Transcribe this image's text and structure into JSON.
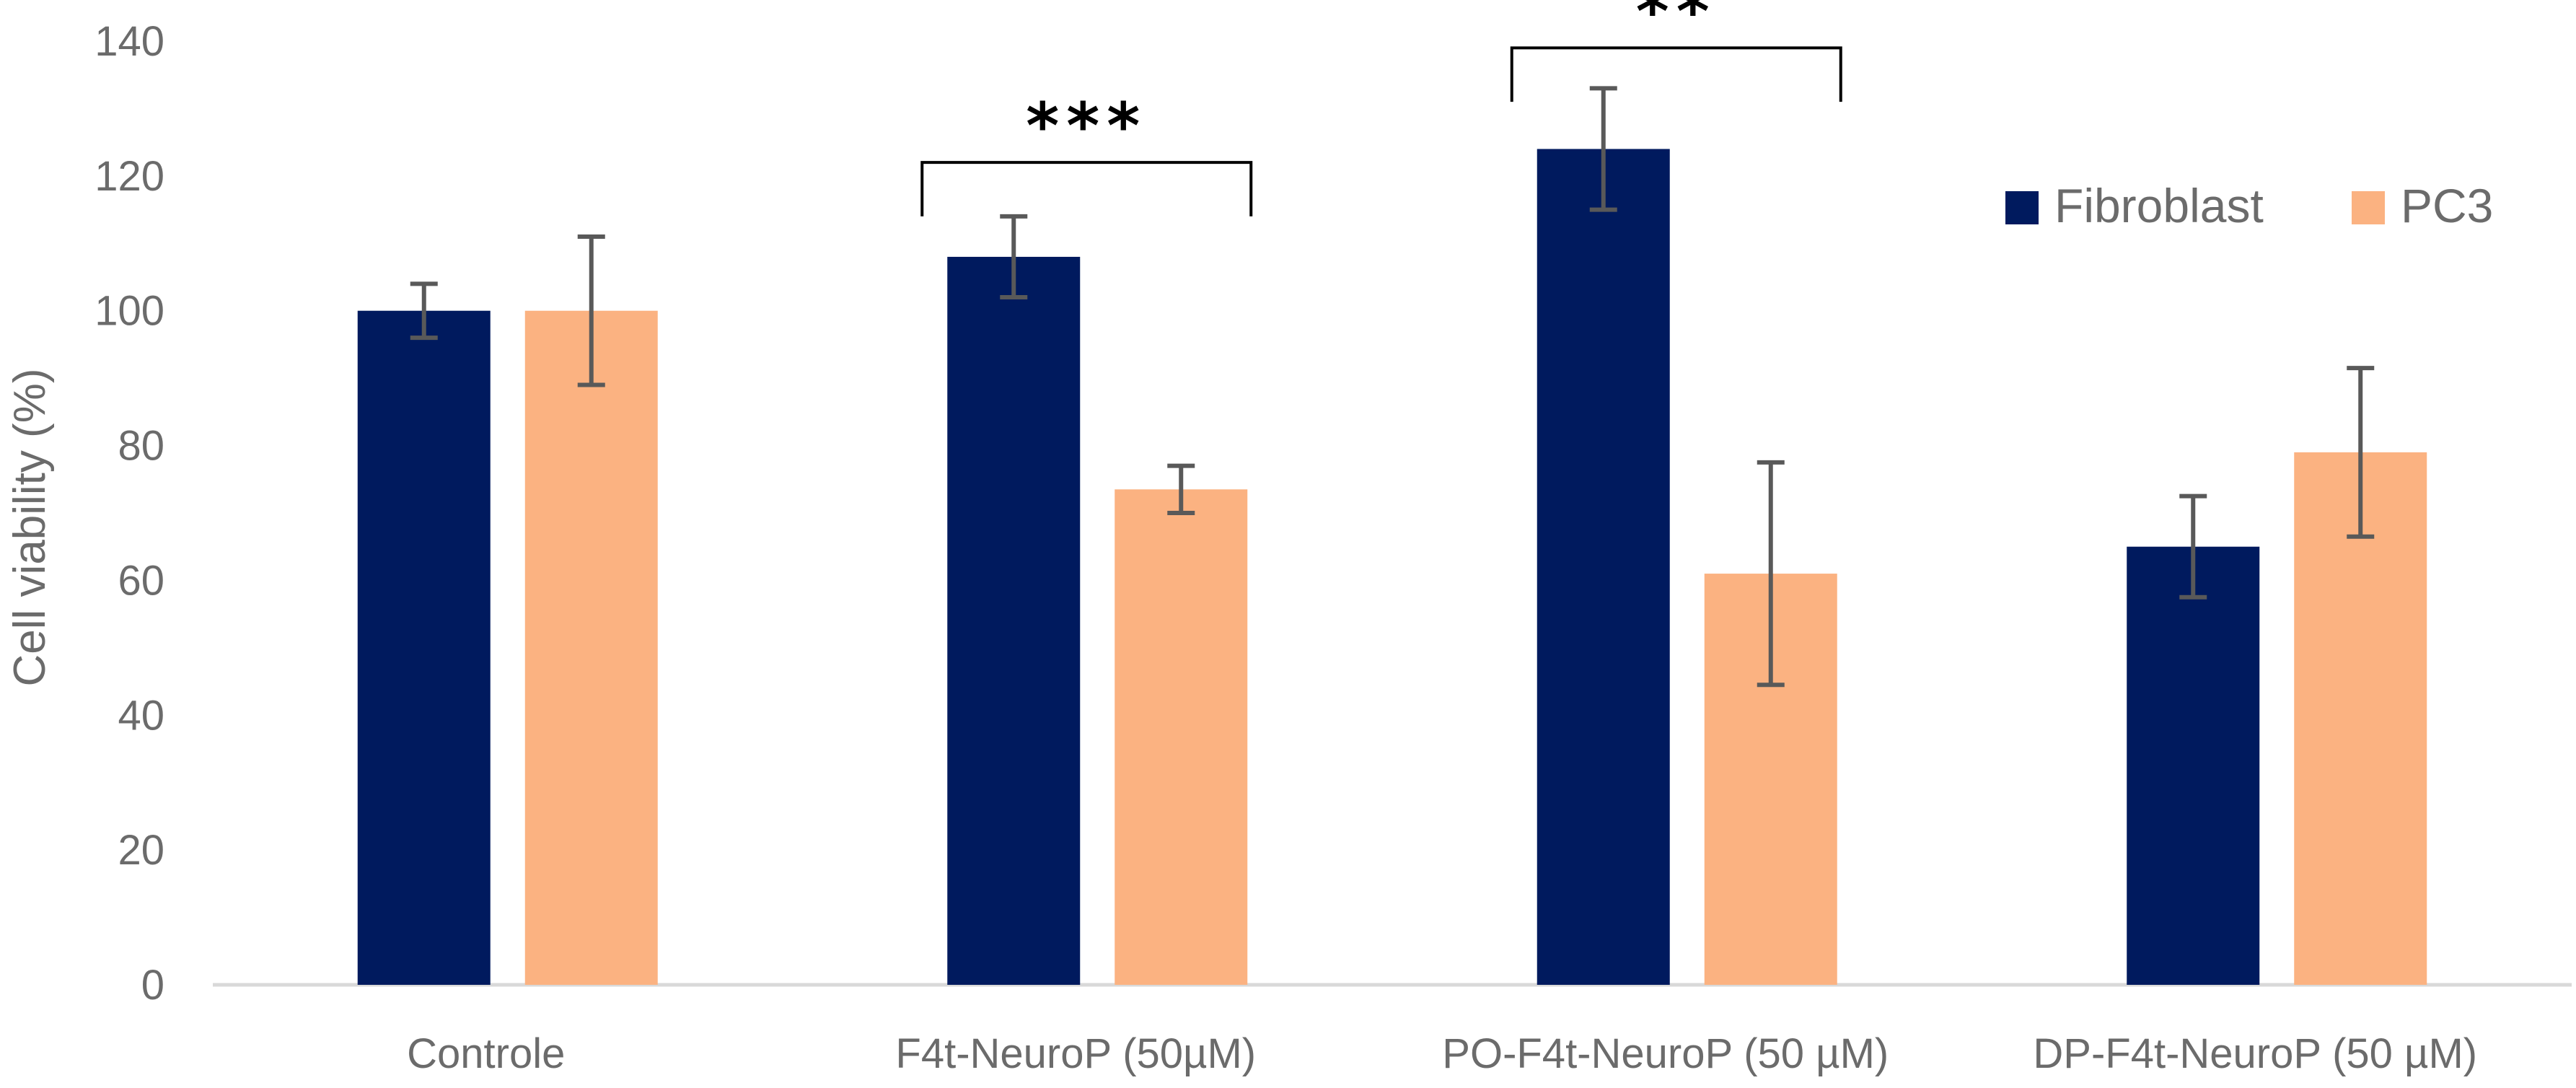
{
  "chart_data": {
    "type": "bar",
    "title": "",
    "xlabel": "",
    "ylabel": "Cell viability (%)",
    "ylim": [
      0,
      140
    ],
    "yticks": [
      0,
      20,
      40,
      60,
      80,
      100,
      120,
      140
    ],
    "grid": false,
    "legend_position": "top-right",
    "categories": [
      "Controle",
      "F4t-NeuroP (50µM)",
      "PO-F4t-NeuroP (50 µM)",
      "DP-F4t-NeuroP (50 µM)"
    ],
    "series": [
      {
        "name": "Fibroblast",
        "color": "#001a5e",
        "values": [
          100,
          108,
          124,
          65
        ],
        "error": [
          4,
          6,
          9,
          7.5
        ]
      },
      {
        "name": "PC3",
        "color": "#fbb281",
        "values": [
          100,
          73.5,
          61,
          79
        ],
        "error": [
          11,
          3.5,
          16.5,
          12.5
        ]
      }
    ],
    "error_bar_color": "#595959",
    "significance": [
      {
        "category_index": 1,
        "label": "***",
        "bracket_y": 122,
        "tick_bottom": 114
      },
      {
        "category_index": 2,
        "label": "**",
        "bracket_y": 139,
        "tick_bottom": 131
      }
    ]
  }
}
